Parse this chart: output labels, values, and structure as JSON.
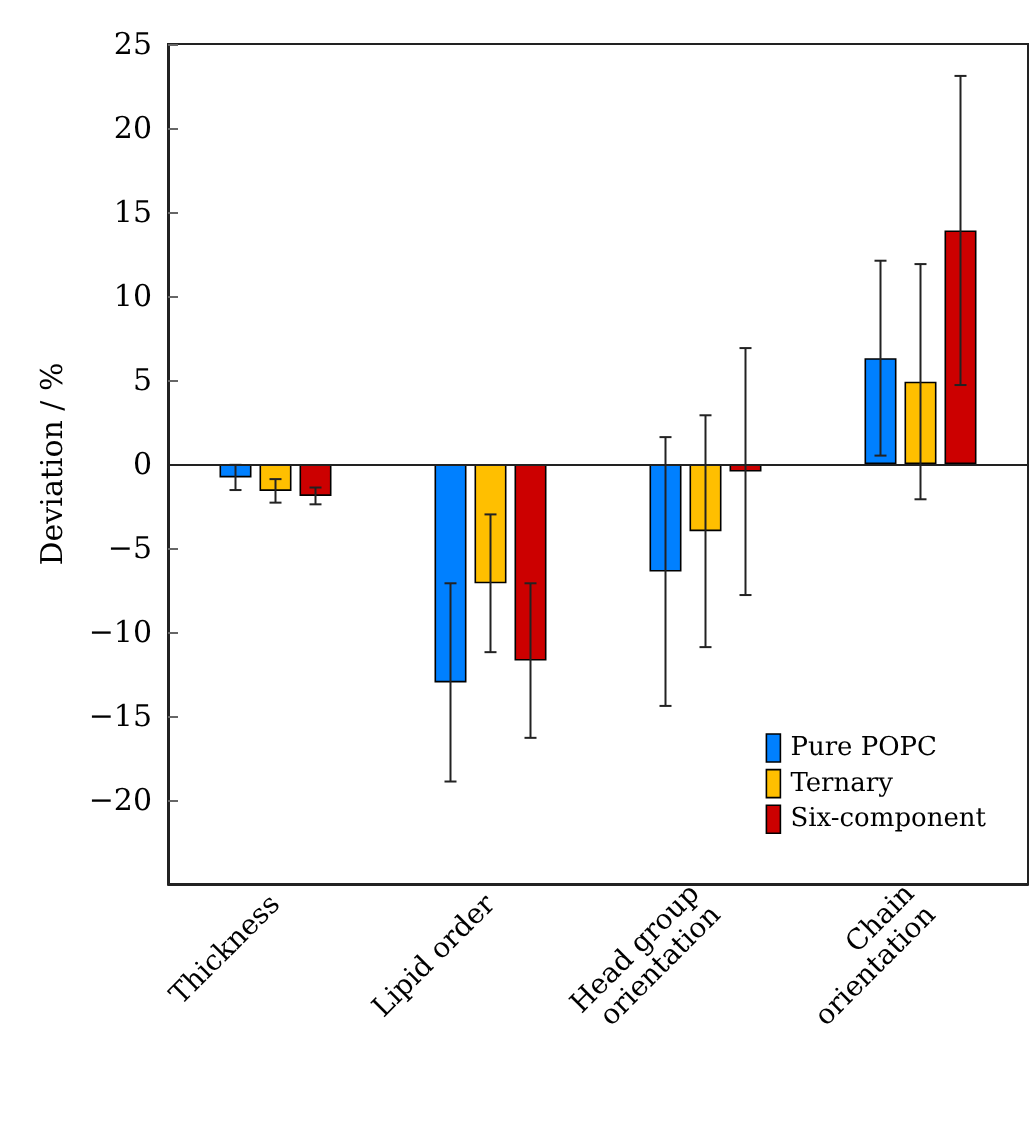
{
  "chart_data": {
    "type": "bar",
    "ylabel": "Deviation / %",
    "categories": [
      "Thickness",
      "Lipid order",
      "Head group\norientation",
      "Chain\norientation"
    ],
    "series": [
      {
        "name": "Pure POPC",
        "color": "#0080ff",
        "values": [
          -0.8,
          -13,
          -6.4,
          6.3
        ],
        "errors": [
          0.75,
          5.9,
          8,
          5.8
        ]
      },
      {
        "name": "Ternary",
        "color": "#ffbf00",
        "values": [
          -1.6,
          -7.1,
          -4,
          4.9
        ],
        "errors": [
          0.7,
          4.1,
          6.9,
          7
        ]
      },
      {
        "name": "Six-component",
        "color": "#cc0000",
        "values": [
          -1.9,
          -11.7,
          -0.45,
          13.9
        ],
        "errors": [
          0.5,
          4.6,
          7.35,
          9.2
        ]
      }
    ],
    "ylim": [
      -25,
      25
    ],
    "yticks": [
      -20,
      -15,
      -10,
      -5,
      0,
      5,
      10,
      15,
      20,
      25
    ],
    "ref_lines": [
      {
        "axis": "y",
        "value": 0
      }
    ],
    "grid": false,
    "legend": "bottom right"
  }
}
